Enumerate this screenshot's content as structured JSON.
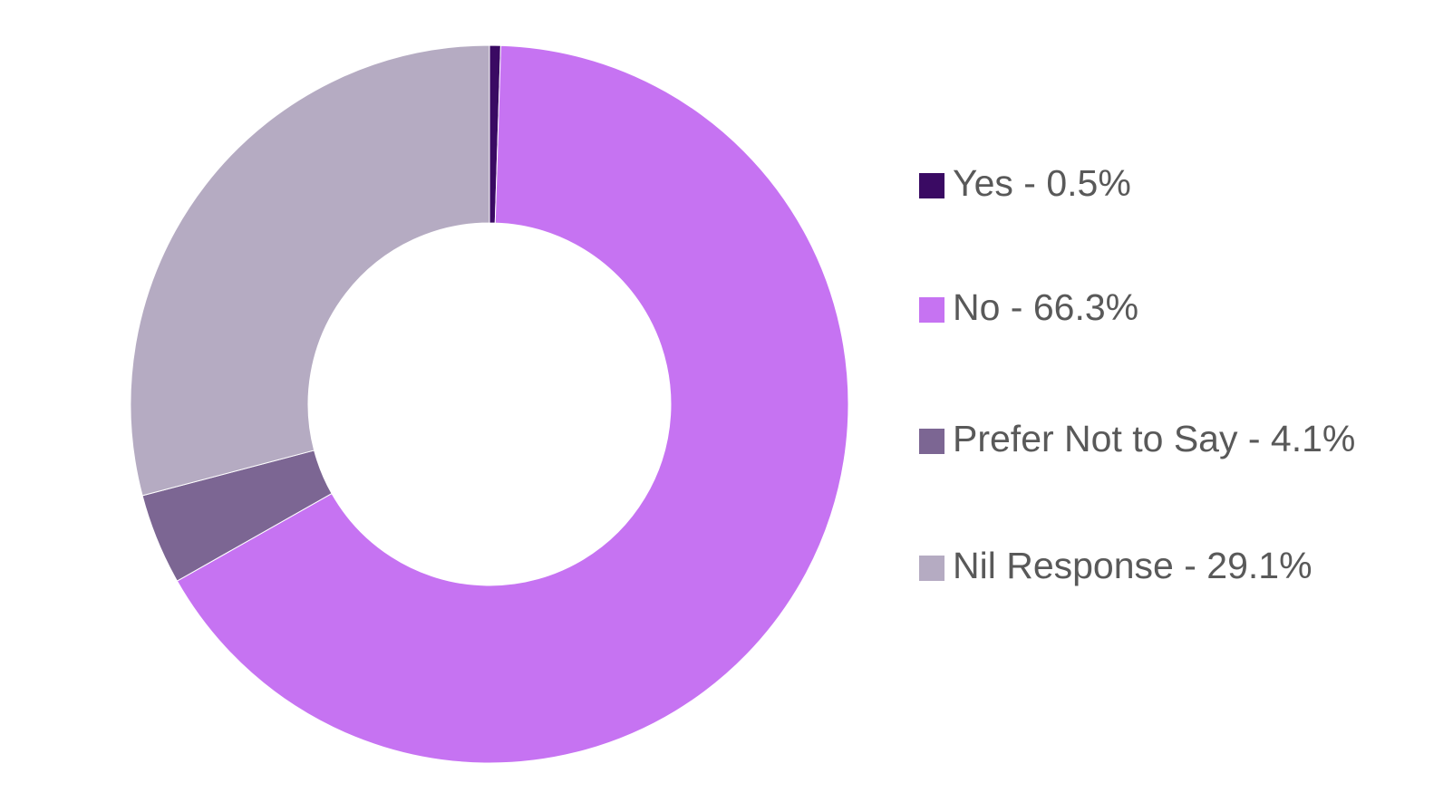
{
  "chart_data": {
    "type": "pie",
    "subtype": "donut",
    "title": "",
    "categories": [
      "Yes",
      "No",
      "Prefer Not to Say",
      "Nil Response"
    ],
    "values": [
      0.5,
      66.3,
      4.1,
      29.1
    ],
    "unit": "%",
    "colors": [
      "#3a0a63",
      "#c673f2",
      "#7c6693",
      "#b5abc2"
    ],
    "start_angle_deg": 0,
    "direction": "clockwise",
    "inner_radius_ratio": 0.505,
    "legend_position": "right",
    "legend_entries": [
      "Yes - 0.5%",
      "No - 66.3%",
      "Prefer Not to Say - 4.1%",
      "Nil Response - 29.1%"
    ],
    "background_color": "#ffffff",
    "legend_text_color": "#595959"
  }
}
